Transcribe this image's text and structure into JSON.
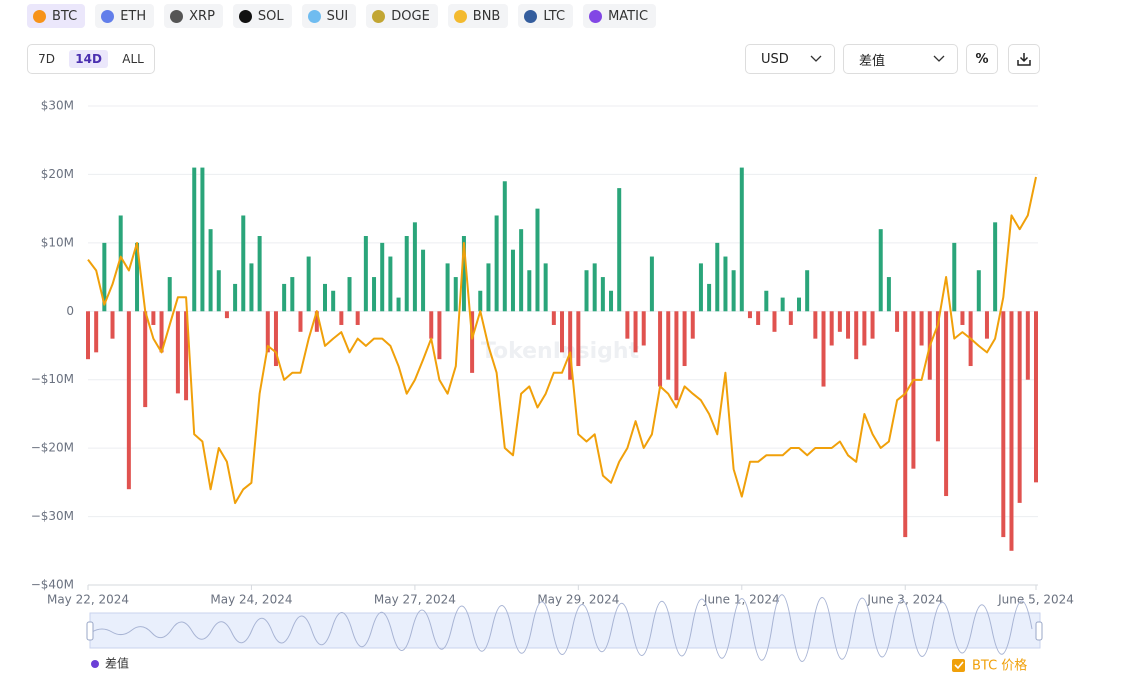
{
  "ui": {
    "tabs": [
      "BTC",
      "ETH",
      "XRP",
      "SOL",
      "SUI",
      "DOGE",
      "BNB",
      "LTC",
      "MATIC"
    ],
    "tab_colors": [
      "#f7931a",
      "#627eea",
      "#555555",
      "#111111",
      "#6fbcf0",
      "#c2a633",
      "#f3ba2f",
      "#345d9d",
      "#8247e5"
    ],
    "selected_tab": 0,
    "ranges": [
      "7D",
      "14D",
      "ALL"
    ],
    "selected_range": 1,
    "currency": "USD",
    "metric": "差值",
    "percent_button": "%"
  },
  "chart_data": {
    "type": "bar",
    "watermark": "TokenInsight",
    "categories": [
      "May 22, 2024",
      null,
      null,
      null,
      null,
      null,
      null,
      null,
      null,
      null,
      null,
      null,
      null,
      null,
      null,
      null,
      null,
      null,
      null,
      null,
      "May 24, 2024",
      null,
      null,
      null,
      null,
      null,
      null,
      null,
      null,
      null,
      null,
      null,
      null,
      null,
      null,
      null,
      null,
      null,
      null,
      null,
      "May 27, 2024",
      null,
      null,
      null,
      null,
      null,
      null,
      null,
      null,
      null,
      null,
      null,
      null,
      null,
      null,
      null,
      null,
      null,
      null,
      null,
      "May 29, 2024",
      null,
      null,
      null,
      null,
      null,
      null,
      null,
      null,
      null,
      null,
      null,
      null,
      null,
      null,
      null,
      null,
      null,
      null,
      null,
      "June 1, 2024",
      null,
      null,
      null,
      null,
      null,
      null,
      null,
      null,
      null,
      null,
      null,
      null,
      null,
      null,
      null,
      null,
      null,
      null,
      null,
      "June 3, 2024",
      null,
      null,
      null,
      null,
      null,
      null,
      null,
      null,
      null,
      null,
      null,
      null,
      null,
      null,
      null,
      "June 5, 2024"
    ],
    "ylim": [
      -40,
      30
    ],
    "yticks": [
      {
        "value": 30,
        "label": "$30M"
      },
      {
        "value": 20,
        "label": "$20M"
      },
      {
        "value": 10,
        "label": "$10M"
      },
      0,
      {
        "value": -10,
        "label": "−$10M"
      },
      {
        "value": -20,
        "label": "−$20M"
      },
      {
        "value": -30,
        "label": "−$30M"
      },
      {
        "value": -40,
        "label": "−$40M"
      }
    ],
    "y2lim": [
      65470,
      72080
    ],
    "grid": true,
    "series": [
      {
        "name": "差值",
        "type": "bar",
        "color": "#6b3fd6",
        "positive_color": "#2aa57a",
        "negative_color": "#e0524f",
        "values": [
          -7,
          -6,
          10,
          -4,
          14,
          -26,
          10,
          -14,
          -2,
          -6,
          5,
          -12,
          -13,
          21,
          21,
          12,
          6,
          -1,
          4,
          14,
          7,
          11,
          -6,
          -8,
          4,
          5,
          -3,
          8,
          -3,
          4,
          3,
          -2,
          5,
          -2,
          11,
          5,
          10,
          8,
          2,
          11,
          13,
          9,
          -4,
          -7,
          7,
          5,
          11,
          -9,
          3,
          7,
          14,
          19,
          9,
          12,
          6,
          15,
          7,
          -2,
          -6,
          -10,
          -8,
          6,
          7,
          5,
          3,
          18,
          -4,
          -6,
          -5,
          8,
          -11,
          -10,
          -13,
          -8,
          -4,
          7,
          4,
          10,
          8,
          6,
          21,
          -1,
          -2,
          3,
          -3,
          2,
          -2,
          2,
          6,
          -4,
          -11,
          -5,
          -3,
          -4,
          -7,
          -5,
          -4,
          12,
          5,
          -3,
          -33,
          -23,
          -5,
          -10,
          -19,
          -27,
          10,
          -2,
          -8,
          6,
          -4,
          13,
          -33,
          -35,
          -28,
          -10,
          -25
        ]
      },
      {
        "name": "BTC 价格",
        "type": "line",
        "axis": "y2",
        "color": "#f0a00a",
        "values": [
          69960,
          69810,
          69340,
          69620,
          70000,
          69810,
          70190,
          69250,
          68870,
          68680,
          69060,
          69440,
          69440,
          67550,
          67450,
          66790,
          67360,
          67170,
          66600,
          66790,
          66880,
          68110,
          68770,
          68680,
          68300,
          68400,
          68400,
          68870,
          69250,
          68770,
          68870,
          68960,
          68680,
          68870,
          68770,
          68870,
          68870,
          68770,
          68490,
          68110,
          68300,
          68580,
          68870,
          68300,
          68110,
          68490,
          70190,
          68870,
          69250,
          68770,
          68400,
          67360,
          67260,
          68110,
          68210,
          67920,
          68110,
          68400,
          68400,
          68680,
          67550,
          67450,
          67550,
          66980,
          66880,
          67170,
          67360,
          67730,
          67360,
          67550,
          68210,
          68110,
          67920,
          68210,
          68110,
          68020,
          67830,
          67550,
          68400,
          67070,
          66690,
          67170,
          67170,
          67260,
          67260,
          67260,
          67360,
          67360,
          67260,
          67360,
          67360,
          67360,
          67450,
          67260,
          67170,
          67830,
          67550,
          67360,
          67450,
          68020,
          68110,
          68300,
          68300,
          68770,
          69060,
          69720,
          68870,
          68960,
          68870,
          68770,
          68680,
          68870,
          69440,
          70570,
          70380,
          70570,
          71100
        ]
      }
    ]
  }
}
